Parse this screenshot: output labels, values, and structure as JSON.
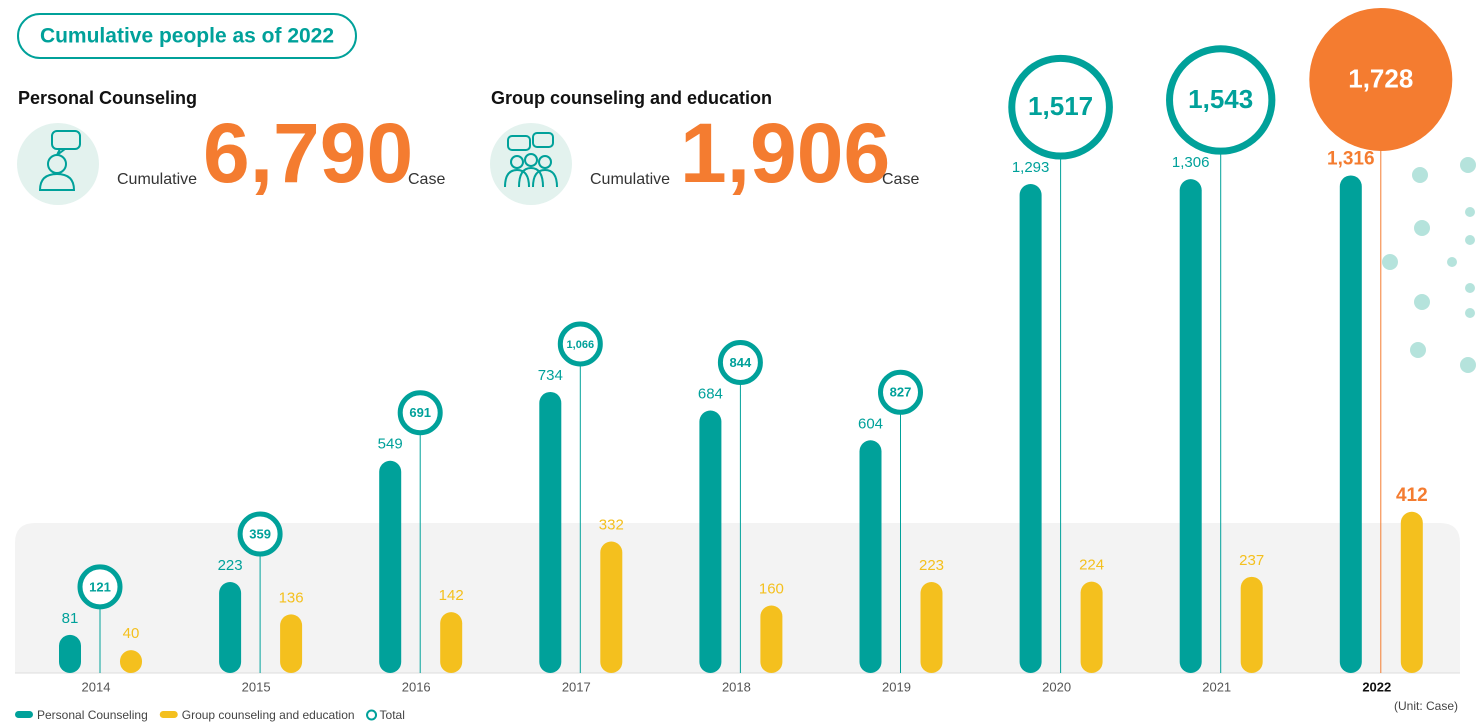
{
  "header": {
    "badge": "Cumulative people as of 2022",
    "stats": [
      {
        "title": "Personal Counseling",
        "prefix": "Cumulative",
        "number": "6,790",
        "unit": "Case"
      },
      {
        "title": "Group counseling and education",
        "prefix": "Cumulative",
        "number": "1,906",
        "unit": "Case"
      }
    ]
  },
  "chart_data": {
    "type": "bar",
    "categories": [
      "2014",
      "2015",
      "2016",
      "2017",
      "2018",
      "2019",
      "2020",
      "2021",
      "2022"
    ],
    "series": [
      {
        "name": "Personal Counseling",
        "color": "#00a19a",
        "values": [
          81,
          223,
          549,
          734,
          684,
          604,
          1293,
          1306,
          1316
        ],
        "value_labels": [
          "81",
          "223",
          "549",
          "734",
          "684",
          "604",
          "1,293",
          "1,306",
          "1,316"
        ]
      },
      {
        "name": "Group counseling and education",
        "color": "#f4c01e",
        "values": [
          40,
          136,
          142,
          332,
          160,
          223,
          224,
          237,
          412
        ],
        "value_labels": [
          "40",
          "136",
          "142",
          "332",
          "160",
          "223",
          "224",
          "237",
          "412"
        ]
      },
      {
        "name": "Total",
        "color": "#00a19a",
        "values": [
          121,
          359,
          691,
          1066,
          844,
          827,
          1517,
          1543,
          1728
        ],
        "value_labels": [
          "121",
          "359",
          "691",
          "1,066",
          "844",
          "827",
          "1,517",
          "1,543",
          "1,728"
        ]
      }
    ],
    "highlight_color": "#f47c30",
    "unit_label": "(Unit: Case)"
  }
}
